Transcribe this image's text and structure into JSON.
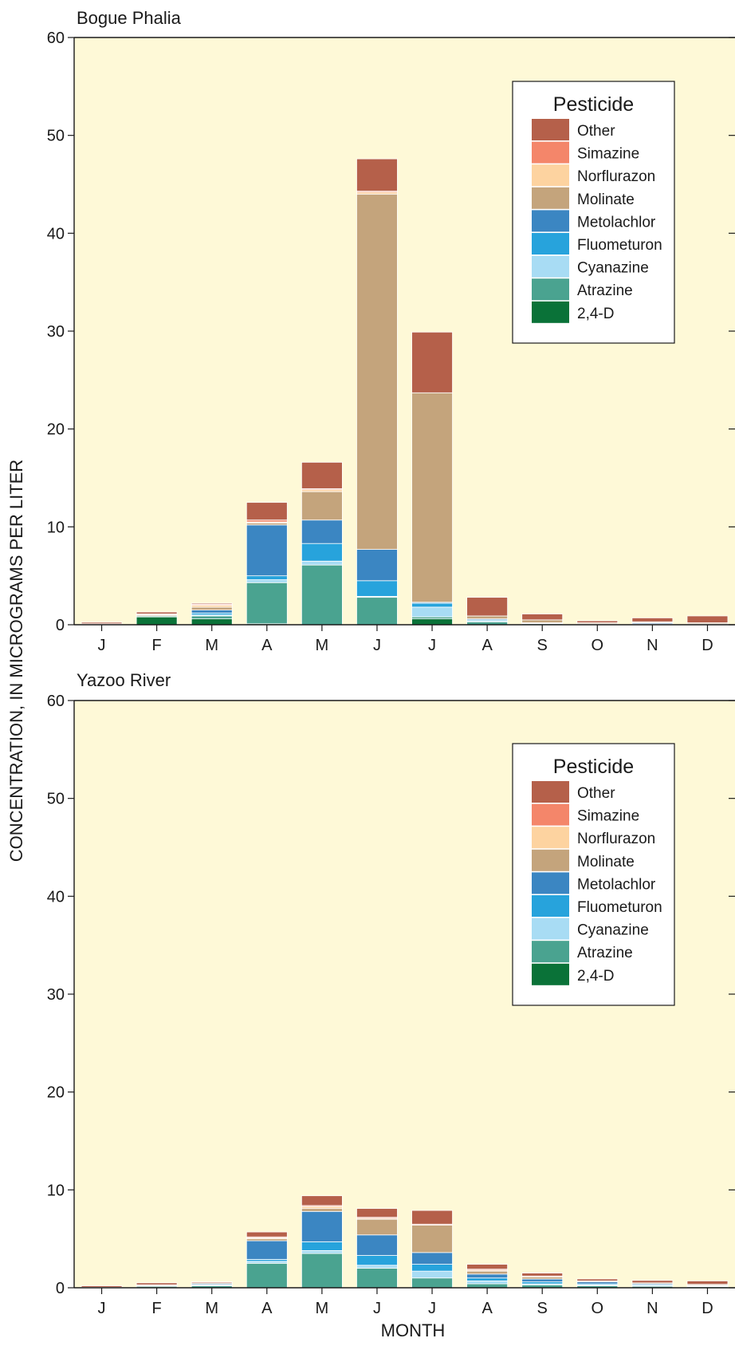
{
  "ylabel": "CONCENTRATION, IN MICROGRAMS PER LITER",
  "xlabel": "MONTH",
  "legend_title": "Pesticide",
  "legend_items": [
    "Other",
    "Simazine",
    "Norflurazon",
    "Molinate",
    "Metolachlor",
    "Fluometuron",
    "Cyanazine",
    "Atrazine",
    "2,4-D"
  ],
  "colors": {
    "plot_bg": "#fef9d7",
    "2,4-D": "#0a7238",
    "Atrazine": "#4aa390",
    "Cyanazine": "#a8dcf4",
    "Fluometuron": "#27a3dc",
    "Metolachlor": "#3b86c2",
    "Molinate": "#c4a47c",
    "Norflurazon": "#fdd3a0",
    "Simazine": "#f4866a",
    "Other": "#b5604a"
  },
  "chart_data": [
    {
      "type": "bar",
      "stacked": true,
      "title": "Bogue Phalia",
      "xlabel": "MONTH",
      "ylabel": "CONCENTRATION, IN MICROGRAMS PER LITER",
      "ylim": [
        0,
        60
      ],
      "yticks": [
        0,
        10,
        20,
        30,
        40,
        50,
        60
      ],
      "categories": [
        "J",
        "F",
        "M",
        "A",
        "M",
        "J",
        "J",
        "A",
        "S",
        "O",
        "N",
        "D"
      ],
      "legend_position": "top-right",
      "series": [
        {
          "name": "2,4-D",
          "values": [
            0.0,
            0.8,
            0.6,
            0.1,
            0.0,
            0.0,
            0.6,
            0.0,
            0.0,
            0.0,
            0.0,
            0.0
          ]
        },
        {
          "name": "Atrazine",
          "values": [
            0.05,
            0.1,
            0.3,
            4.2,
            6.1,
            2.8,
            0.2,
            0.3,
            0.1,
            0.05,
            0.05,
            0.05
          ]
        },
        {
          "name": "Cyanazine",
          "values": [
            0.0,
            0.0,
            0.1,
            0.3,
            0.4,
            0.1,
            1.0,
            0.1,
            0.0,
            0.0,
            0.0,
            0.0
          ]
        },
        {
          "name": "Fluometuron",
          "values": [
            0.0,
            0.0,
            0.2,
            0.4,
            1.8,
            1.6,
            0.4,
            0.1,
            0.05,
            0.0,
            0.05,
            0.0
          ]
        },
        {
          "name": "Metolachlor",
          "values": [
            0.0,
            0.0,
            0.3,
            5.2,
            2.4,
            3.2,
            0.1,
            0.1,
            0.05,
            0.05,
            0.1,
            0.05
          ]
        },
        {
          "name": "Molinate",
          "values": [
            0.0,
            0.1,
            0.3,
            0.2,
            2.9,
            36.3,
            21.4,
            0.3,
            0.3,
            0.1,
            0.1,
            0.1
          ]
        },
        {
          "name": "Norflurazon",
          "values": [
            0.0,
            0.05,
            0.2,
            0.1,
            0.2,
            0.2,
            0.0,
            0.0,
            0.0,
            0.0,
            0.0,
            0.0
          ]
        },
        {
          "name": "Simazine",
          "values": [
            0.05,
            0.05,
            0.1,
            0.2,
            0.1,
            0.1,
            0.0,
            0.0,
            0.0,
            0.0,
            0.0,
            0.0
          ]
        },
        {
          "name": "Other",
          "values": [
            0.15,
            0.2,
            0.1,
            1.8,
            2.7,
            3.3,
            6.2,
            1.9,
            0.6,
            0.2,
            0.4,
            0.7
          ]
        }
      ]
    },
    {
      "type": "bar",
      "stacked": true,
      "title": "Yazoo River",
      "xlabel": "MONTH",
      "ylabel": "CONCENTRATION, IN MICROGRAMS PER LITER",
      "ylim": [
        0,
        60
      ],
      "yticks": [
        0,
        10,
        20,
        30,
        40,
        50,
        60
      ],
      "categories": [
        "J",
        "F",
        "M",
        "A",
        "M",
        "J",
        "J",
        "A",
        "S",
        "O",
        "N",
        "D"
      ],
      "legend_position": "top-right",
      "series": [
        {
          "name": "2,4-D",
          "values": [
            0.0,
            0.1,
            0.0,
            0.0,
            0.0,
            0.0,
            0.0,
            0.0,
            0.0,
            0.0,
            0.0,
            0.0
          ]
        },
        {
          "name": "Atrazine",
          "values": [
            0.05,
            0.1,
            0.2,
            2.5,
            3.5,
            2.0,
            1.0,
            0.4,
            0.3,
            0.2,
            0.15,
            0.1
          ]
        },
        {
          "name": "Cyanazine",
          "values": [
            0.0,
            0.0,
            0.05,
            0.2,
            0.3,
            0.3,
            0.7,
            0.3,
            0.1,
            0.1,
            0.05,
            0.05
          ]
        },
        {
          "name": "Fluometuron",
          "values": [
            0.0,
            0.0,
            0.05,
            0.2,
            0.9,
            1.0,
            0.7,
            0.3,
            0.2,
            0.1,
            0.1,
            0.05
          ]
        },
        {
          "name": "Metolachlor",
          "values": [
            0.0,
            0.05,
            0.1,
            1.9,
            3.1,
            2.1,
            1.2,
            0.4,
            0.3,
            0.2,
            0.1,
            0.05
          ]
        },
        {
          "name": "Molinate",
          "values": [
            0.0,
            0.05,
            0.1,
            0.2,
            0.3,
            1.6,
            2.8,
            0.3,
            0.2,
            0.1,
            0.1,
            0.1
          ]
        },
        {
          "name": "Norflurazon",
          "values": [
            0.0,
            0.0,
            0.0,
            0.1,
            0.2,
            0.1,
            0.0,
            0.1,
            0.0,
            0.0,
            0.0,
            0.0
          ]
        },
        {
          "name": "Simazine",
          "values": [
            0.0,
            0.0,
            0.0,
            0.1,
            0.1,
            0.1,
            0.1,
            0.1,
            0.1,
            0.0,
            0.0,
            0.0
          ]
        },
        {
          "name": "Other",
          "values": [
            0.15,
            0.2,
            0.1,
            0.5,
            1.0,
            0.9,
            1.4,
            0.5,
            0.3,
            0.2,
            0.25,
            0.35
          ]
        }
      ]
    }
  ]
}
